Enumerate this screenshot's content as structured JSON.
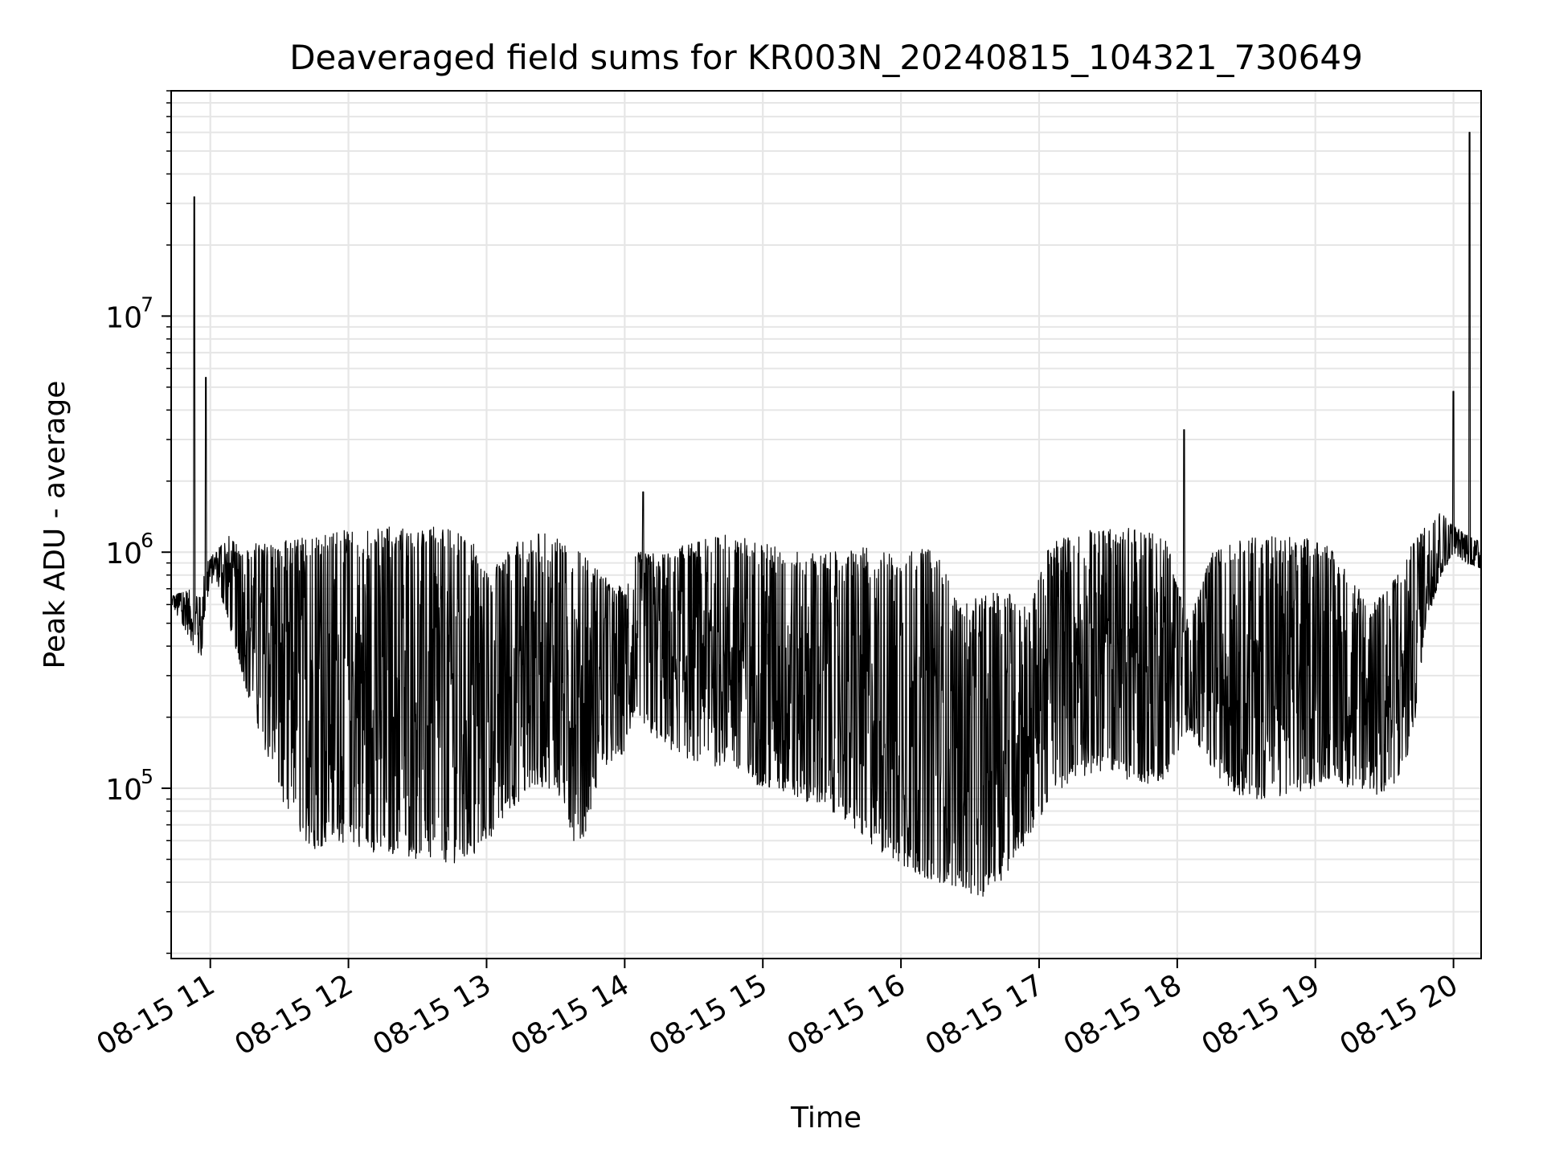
{
  "chart_data": {
    "type": "line",
    "title": "Deaveraged field sums for KR003N_20240815_104321_730649",
    "xlabel": "Time",
    "ylabel": "Peak ADU - average",
    "yscale": "log",
    "grid": true,
    "legend": "none",
    "line_color": "#000000",
    "grid_color": "#e6e6e6",
    "xlim": [
      "2024-08-15 10:43",
      "2024-08-15 20:12"
    ],
    "ylim": [
      19000,
      90000000
    ],
    "x_ticks": [
      {
        "value": "2024-08-15 11:00",
        "label": "08-15 11"
      },
      {
        "value": "2024-08-15 12:00",
        "label": "08-15 12"
      },
      {
        "value": "2024-08-15 13:00",
        "label": "08-15 13"
      },
      {
        "value": "2024-08-15 14:00",
        "label": "08-15 14"
      },
      {
        "value": "2024-08-15 15:00",
        "label": "08-15 15"
      },
      {
        "value": "2024-08-15 16:00",
        "label": "08-15 16"
      },
      {
        "value": "2024-08-15 17:00",
        "label": "08-15 17"
      },
      {
        "value": "2024-08-15 18:00",
        "label": "08-15 18"
      },
      {
        "value": "2024-08-15 19:00",
        "label": "08-15 19"
      },
      {
        "value": "2024-08-15 20:00",
        "label": "08-15 20"
      }
    ],
    "y_ticks": [
      {
        "value": 100000,
        "base": "10",
        "exp": "5"
      },
      {
        "value": 1000000,
        "base": "10",
        "exp": "6"
      },
      {
        "value": 10000000,
        "base": "10",
        "exp": "7"
      }
    ],
    "envelope": {
      "x": [
        "2024-08-15 10:43",
        "2024-08-15 10:50",
        "2024-08-15 10:56",
        "2024-08-15 10:58",
        "2024-08-15 11:02",
        "2024-08-15 11:08",
        "2024-08-15 11:14",
        "2024-08-15 11:20",
        "2024-08-15 11:27",
        "2024-08-15 11:35",
        "2024-08-15 11:45",
        "2024-08-15 11:55",
        "2024-08-15 12:05",
        "2024-08-15 12:15",
        "2024-08-15 12:30",
        "2024-08-15 12:45",
        "2024-08-15 12:55",
        "2024-08-15 13:02",
        "2024-08-15 13:10",
        "2024-08-15 13:20",
        "2024-08-15 13:30",
        "2024-08-15 13:37",
        "2024-08-15 13:42",
        "2024-08-15 13:50",
        "2024-08-15 14:00",
        "2024-08-15 14:05",
        "2024-08-15 14:15",
        "2024-08-15 14:30",
        "2024-08-15 14:45",
        "2024-08-15 15:00",
        "2024-08-15 15:15",
        "2024-08-15 15:30",
        "2024-08-15 15:45",
        "2024-08-15 16:00",
        "2024-08-15 16:15",
        "2024-08-15 16:25",
        "2024-08-15 16:35",
        "2024-08-15 16:45",
        "2024-08-15 16:55",
        "2024-08-15 17:05",
        "2024-08-15 17:15",
        "2024-08-15 17:30",
        "2024-08-15 17:45",
        "2024-08-15 17:55",
        "2024-08-15 18:05",
        "2024-08-15 18:15",
        "2024-08-15 18:25",
        "2024-08-15 18:35",
        "2024-08-15 18:45",
        "2024-08-15 18:55",
        "2024-08-15 19:05",
        "2024-08-15 19:15",
        "2024-08-15 19:25",
        "2024-08-15 19:35",
        "2024-08-15 19:42",
        "2024-08-15 19:48",
        "2024-08-15 19:55",
        "2024-08-15 20:00",
        "2024-08-15 20:05",
        "2024-08-15 20:12"
      ],
      "top": [
        650000,
        700000,
        650000,
        900000,
        1000000,
        1200000,
        1000000,
        1100000,
        1100000,
        1150000,
        1200000,
        1250000,
        1250000,
        1300000,
        1300000,
        1250000,
        1100000,
        800000,
        1150000,
        1200000,
        1200000,
        1000000,
        1050000,
        800000,
        700000,
        1000000,
        1000000,
        1100000,
        1200000,
        1100000,
        1000000,
        1000000,
        1050000,
        1000000,
        1050000,
        600000,
        650000,
        700000,
        600000,
        1100000,
        1250000,
        1300000,
        1250000,
        1200000,
        500000,
        1000000,
        1100000,
        1200000,
        1200000,
        1150000,
        1100000,
        800000,
        600000,
        800000,
        1100000,
        1300000,
        1500000,
        1300000,
        1200000,
        1100000
      ],
      "bottom": [
        600000,
        450000,
        350000,
        600000,
        800000,
        500000,
        300000,
        180000,
        120000,
        70000,
        55000,
        60000,
        55000,
        52000,
        50000,
        48000,
        50000,
        60000,
        80000,
        100000,
        100000,
        60000,
        60000,
        120000,
        140000,
        200000,
        150000,
        130000,
        120000,
        100000,
        90000,
        80000,
        60000,
        45000,
        40000,
        38000,
        34000,
        42000,
        60000,
        90000,
        110000,
        120000,
        100000,
        110000,
        180000,
        120000,
        95000,
        90000,
        90000,
        95000,
        110000,
        100000,
        90000,
        100000,
        150000,
        500000,
        800000,
        1000000,
        900000,
        850000
      ]
    },
    "spikes": [
      {
        "x": "2024-08-15 10:53",
        "y": 32000000
      },
      {
        "x": "2024-08-15 10:58",
        "y": 5500000
      },
      {
        "x": "2024-08-15 14:08",
        "y": 1800000
      },
      {
        "x": "2024-08-15 18:03",
        "y": 3300000
      },
      {
        "x": "2024-08-15 20:00",
        "y": 4800000
      },
      {
        "x": "2024-08-15 20:07",
        "y": 60000000
      }
    ]
  }
}
